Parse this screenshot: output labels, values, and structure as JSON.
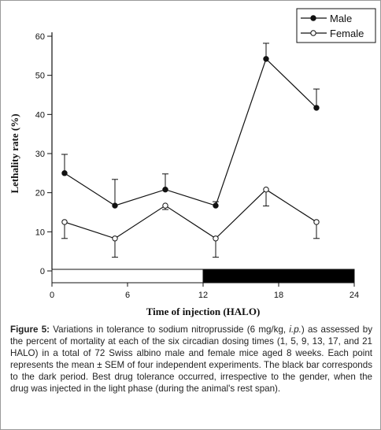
{
  "chart_data": {
    "type": "line",
    "xlabel": "Time of injection (HALO)",
    "ylabel": "Lethality rate (%)",
    "xlim": [
      0,
      24
    ],
    "ylim": [
      0,
      60
    ],
    "x_ticks": [
      0,
      6,
      12,
      18,
      24
    ],
    "y_ticks": [
      0,
      10,
      20,
      30,
      40,
      50,
      60
    ],
    "grid": false,
    "legend_position": "top-right",
    "series": [
      {
        "name": "Male",
        "marker": "filled-circle",
        "x": [
          1,
          5,
          9,
          13,
          17,
          21
        ],
        "y": [
          25,
          16.7,
          20.8,
          16.7,
          54.2,
          41.7
        ],
        "error": [
          4.8,
          6.7,
          4.0,
          1.0,
          4.0,
          4.8
        ],
        "error_direction": "up"
      },
      {
        "name": "Female",
        "marker": "open-circle",
        "x": [
          1,
          5,
          9,
          13,
          17,
          21
        ],
        "y": [
          12.5,
          8.3,
          16.7,
          8.3,
          20.8,
          12.5
        ],
        "error": [
          4.2,
          4.8,
          1.0,
          4.8,
          4.2,
          4.2
        ],
        "error_direction": "down"
      }
    ],
    "light_dark_bar": [
      {
        "from": 0,
        "to": 12,
        "phase": "light"
      },
      {
        "from": 12,
        "to": 24,
        "phase": "dark"
      }
    ]
  },
  "caption": {
    "label": "Figure 5:",
    "text_1": " Variations in tolerance to sodium nitroprusside (6 mg/kg, ",
    "route": "i.p.",
    "text_2": ") as assessed by the percent of mortality at each of the six circadian dosing times (1, 5, 9, 13, 17, and 21 HALO) in a total of 72 Swiss albino male and female mice aged 8 weeks. Each point represents the mean ± SEM of four independent experiments. The black bar corresponds to the dark period. Best drug tolerance occurred, irrespective to the gender, when the drug was injected in the light phase (during the animal's rest span)."
  },
  "colors": {
    "ink": "#111111",
    "dark_bar": "#000000",
    "light_bar": "#ffffff"
  }
}
